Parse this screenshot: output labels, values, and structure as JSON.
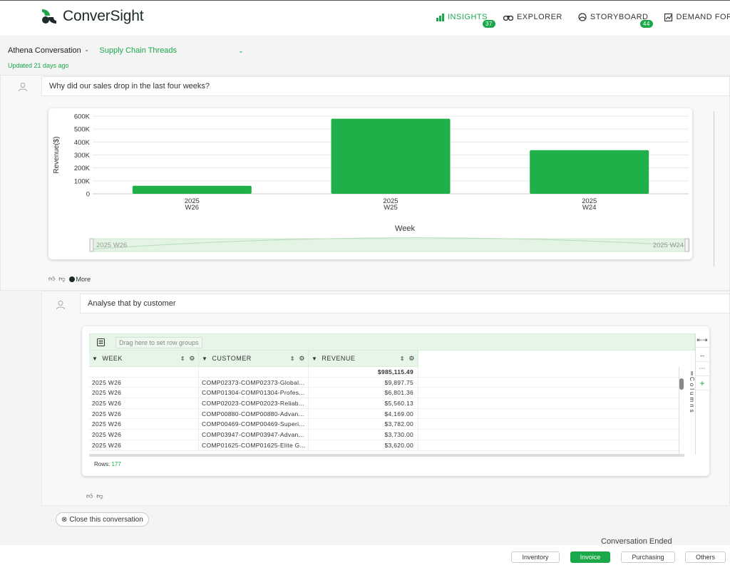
{
  "app": {
    "name": "ConverSight"
  },
  "nav": {
    "insights": {
      "label": "INSIGHTS",
      "badge": "37"
    },
    "explorer": {
      "label": "EXPLORER"
    },
    "storyboard": {
      "label": "STORYBOARD",
      "badge": "44"
    },
    "demand": {
      "label": "DEMAND FOREC"
    }
  },
  "conversation": {
    "title": "Athena Conversation",
    "separator": "-",
    "thread": "Supply Chain Threads",
    "updated": "Updated 21 days ago"
  },
  "q1": {
    "text": "Why did our sales drop in the last four weeks?",
    "more": "More"
  },
  "chart_data": {
    "type": "bar",
    "categories": [
      "2025 W26",
      "2025 W25",
      "2025 W24"
    ],
    "category_lines": [
      [
        "2025",
        "W26"
      ],
      [
        "2025",
        "W25"
      ],
      [
        "2025",
        "W24"
      ]
    ],
    "values": [
      62000,
      580000,
      337000
    ],
    "ylabel": "Revenue($)",
    "xlabel": "Week",
    "ylim": [
      0,
      600000
    ],
    "yticks": [
      "0",
      "100K",
      "200K",
      "300K",
      "400K",
      "500K",
      "600K"
    ],
    "brush_labels": [
      "2025 W26",
      "2025 W24"
    ],
    "color": "#1fb04a",
    "grid": true
  },
  "q2": {
    "text": "Analyse that by customer"
  },
  "table": {
    "drag_hint": "Drag here to set row groups",
    "columns": [
      "WEEK",
      "CUSTOMER",
      "REVENUE"
    ],
    "total": "$985,115.49",
    "rows": [
      [
        "2025 W26",
        "COMP02373-COMP02373-Global...",
        "$9,897.75"
      ],
      [
        "2025 W26",
        "COMP01304-COMP01304-Profes...",
        "$6,801.36"
      ],
      [
        "2025 W26",
        "COMP02023-COMP02023-Reliab...",
        "$5,560.13"
      ],
      [
        "2025 W26",
        "COMP00880-COMP00880-Advan...",
        "$4,169.00"
      ],
      [
        "2025 W26",
        "COMP00469-COMP00469-Superi...",
        "$3,782.00"
      ],
      [
        "2025 W26",
        "COMP03947-COMP03947-Advan...",
        "$3,730.00"
      ],
      [
        "2025 W26",
        "COMP01625-COMP01625-Elite G...",
        "$3,620.00"
      ]
    ],
    "rows_label": "Rows:",
    "rows_count": "177",
    "columns_tab": "Columns"
  },
  "actions": {
    "close": "Close this conversation",
    "ended": "Conversation Ended"
  },
  "categories": [
    "Inventory",
    "Invoice",
    "Purchasing",
    "Others"
  ]
}
